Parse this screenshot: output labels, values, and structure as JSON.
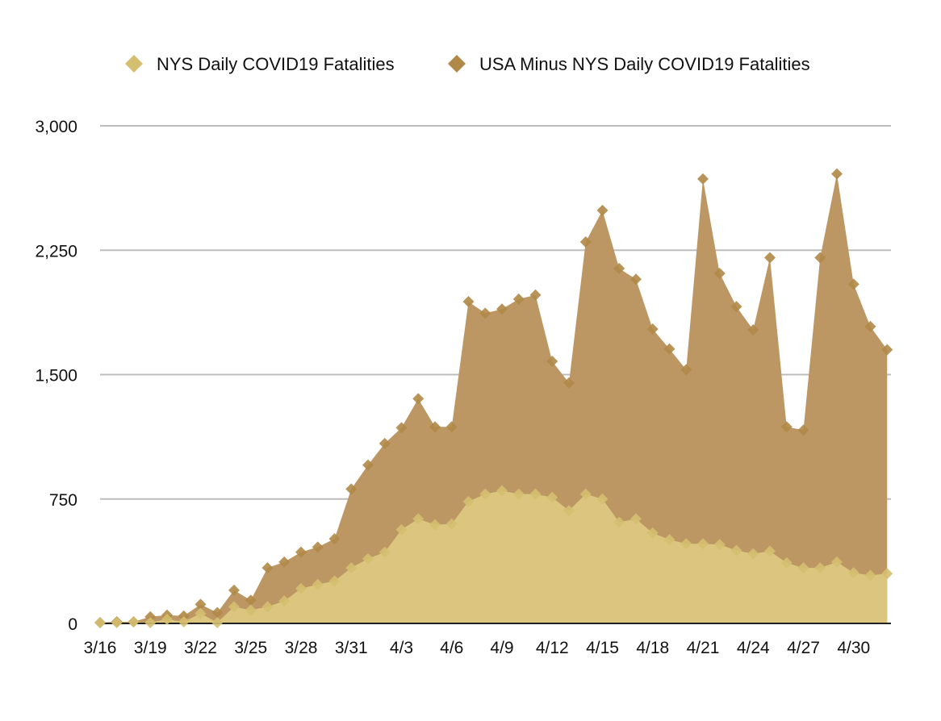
{
  "chart_data": {
    "type": "area",
    "title": "",
    "xlabel": "",
    "ylabel": "",
    "ylim": [
      0,
      3000
    ],
    "yticks": [
      0,
      750,
      1500,
      2250,
      3000
    ],
    "ytick_labels": [
      "0",
      "750",
      "1,500",
      "2,250",
      "3,000"
    ],
    "grid": true,
    "legend_position": "top-center",
    "categories": [
      "3/16",
      "3/17",
      "3/18",
      "3/19",
      "3/20",
      "3/21",
      "3/22",
      "3/23",
      "3/24",
      "3/25",
      "3/26",
      "3/27",
      "3/28",
      "3/29",
      "3/30",
      "3/31",
      "4/1",
      "4/2",
      "4/3",
      "4/4",
      "4/5",
      "4/6",
      "4/7",
      "4/8",
      "4/9",
      "4/10",
      "4/11",
      "4/12",
      "4/13",
      "4/14",
      "4/15",
      "4/16",
      "4/17",
      "4/18",
      "4/19",
      "4/20",
      "4/21",
      "4/22",
      "4/23",
      "4/24",
      "4/25",
      "4/26",
      "4/27",
      "4/28",
      "4/29",
      "4/30",
      "5/1",
      "5/2"
    ],
    "x_tick_labels": [
      "3/16",
      "3/19",
      "3/22",
      "3/25",
      "3/28",
      "3/31",
      "4/3",
      "4/6",
      "4/9",
      "4/12",
      "4/15",
      "4/18",
      "4/21",
      "4/24",
      "4/27",
      "4/30"
    ],
    "x_tick_indices": [
      0,
      3,
      6,
      9,
      12,
      15,
      18,
      21,
      24,
      27,
      30,
      33,
      36,
      39,
      42,
      45
    ],
    "series": [
      {
        "name": "NYS Daily COVID19 Fatalities",
        "color": "#dcc67f",
        "marker_color": "#d4be70",
        "values": [
          5,
          5,
          10,
          5,
          25,
          10,
          60,
          5,
          100,
          80,
          100,
          135,
          210,
          235,
          255,
          335,
          390,
          430,
          565,
          630,
          595,
          600,
          735,
          780,
          800,
          780,
          780,
          760,
          680,
          780,
          750,
          610,
          630,
          545,
          505,
          480,
          480,
          475,
          440,
          420,
          435,
          365,
          335,
          335,
          370,
          305,
          290,
          300
        ]
      },
      {
        "name": "USA Minus NYS Daily COVID19 Fatalities",
        "color": "#bc9763",
        "marker_color": "#b08847",
        "values": [
          5,
          10,
          10,
          40,
          50,
          45,
          115,
          65,
          200,
          140,
          335,
          370,
          430,
          460,
          510,
          810,
          955,
          1085,
          1180,
          1355,
          1185,
          1185,
          1940,
          1870,
          1895,
          1955,
          1980,
          1580,
          1450,
          2300,
          2490,
          2140,
          2075,
          1775,
          1655,
          1530,
          2680,
          2110,
          1910,
          1770,
          2205,
          1185,
          1165,
          2205,
          2710,
          2045,
          1790,
          1650
        ]
      }
    ]
  }
}
